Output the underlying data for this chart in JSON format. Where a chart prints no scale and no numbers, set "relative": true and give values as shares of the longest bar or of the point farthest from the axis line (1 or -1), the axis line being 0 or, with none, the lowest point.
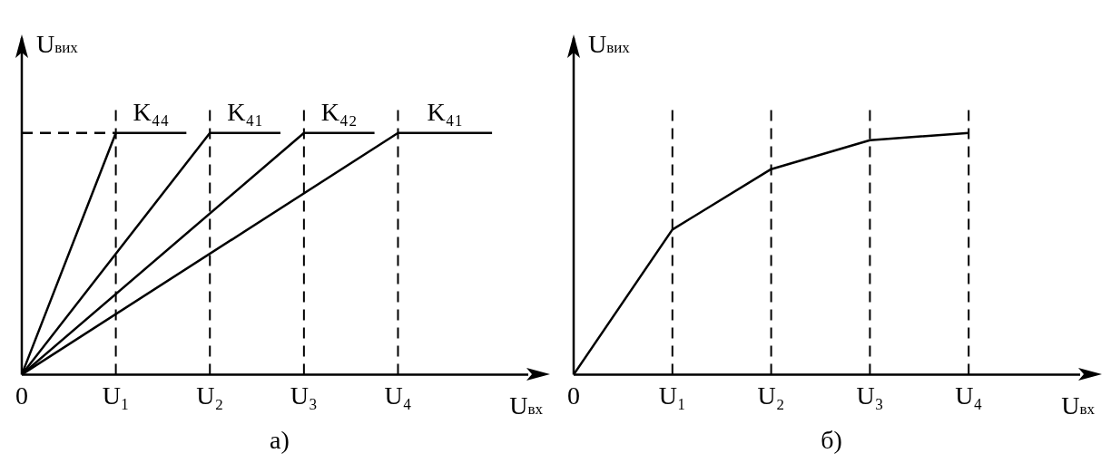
{
  "chart_data": [
    {
      "type": "line",
      "title": "а)",
      "xlabel": "U$_{вх}$",
      "ylabel": "U$_{вих}$",
      "relative": true,
      "marker": "none",
      "categories": [
        "0",
        null,
        null,
        null,
        "U₁",
        null,
        null,
        null,
        "U₂",
        null,
        null,
        null,
        "U₃",
        null,
        null,
        null,
        "U₄",
        null,
        null,
        null,
        null,
        null
      ],
      "series": [
        {
          "line_style": "dashed",
          "color": "#000000",
          "values": [
            1,
            null,
            null,
            null,
            1,
            null,
            null,
            null,
            null,
            null,
            null,
            null,
            null,
            null,
            null,
            null,
            null,
            null,
            null,
            null,
            null,
            null
          ]
        },
        {
          "name": "K₄₄",
          "color": "#000000",
          "values": [
            0,
            null,
            null,
            null,
            1,
            null,
            null,
            1,
            null,
            null,
            null,
            null,
            null,
            null,
            null,
            null,
            null,
            null,
            null,
            null,
            null,
            null
          ]
        },
        {
          "name": "K₄₁",
          "color": "#000000",
          "values": [
            0,
            null,
            null,
            null,
            null,
            null,
            null,
            null,
            1,
            null,
            null,
            1,
            null,
            null,
            null,
            null,
            null,
            null,
            null,
            null,
            null,
            null
          ]
        },
        {
          "name": "K₄₂",
          "color": "#000000",
          "values": [
            0,
            null,
            null,
            null,
            null,
            null,
            null,
            null,
            null,
            null,
            null,
            null,
            1,
            null,
            null,
            1,
            null,
            null,
            null,
            null,
            null,
            null
          ]
        },
        {
          "name": "K₄₁",
          "color": "#000000",
          "values": [
            0,
            null,
            null,
            null,
            null,
            null,
            null,
            null,
            null,
            null,
            null,
            null,
            null,
            null,
            null,
            null,
            1,
            null,
            null,
            null,
            1,
            null
          ]
        }
      ],
      "ref_lines": [
        {
          "axis": "x",
          "value": "U₁",
          "line_style": "dashed"
        },
        {
          "axis": "x",
          "value": "U₂",
          "line_style": "dashed"
        },
        {
          "axis": "x",
          "value": "U₃",
          "line_style": "dashed"
        },
        {
          "axis": "x",
          "value": "U₄",
          "line_style": "dashed"
        }
      ]
    },
    {
      "type": "line",
      "title": "б)",
      "xlabel": "U$_{вх}$",
      "ylabel": "U$_{вих}$",
      "relative": true,
      "marker": "none",
      "categories": [
        "0",
        "U₁",
        "U₂",
        "U₃",
        "U₄",
        null
      ],
      "series": [
        {
          "color": "#000000",
          "values": [
            0,
            0.6,
            0.85,
            0.97,
            1,
            null
          ]
        }
      ],
      "ref_lines": [
        {
          "axis": "x",
          "value": "U₁",
          "line_style": "dashed"
        },
        {
          "axis": "x",
          "value": "U₂",
          "line_style": "dashed"
        },
        {
          "axis": "x",
          "value": "U₃",
          "line_style": "dashed"
        },
        {
          "axis": "x",
          "value": "U₄",
          "line_style": "dashed"
        }
      ]
    }
  ]
}
